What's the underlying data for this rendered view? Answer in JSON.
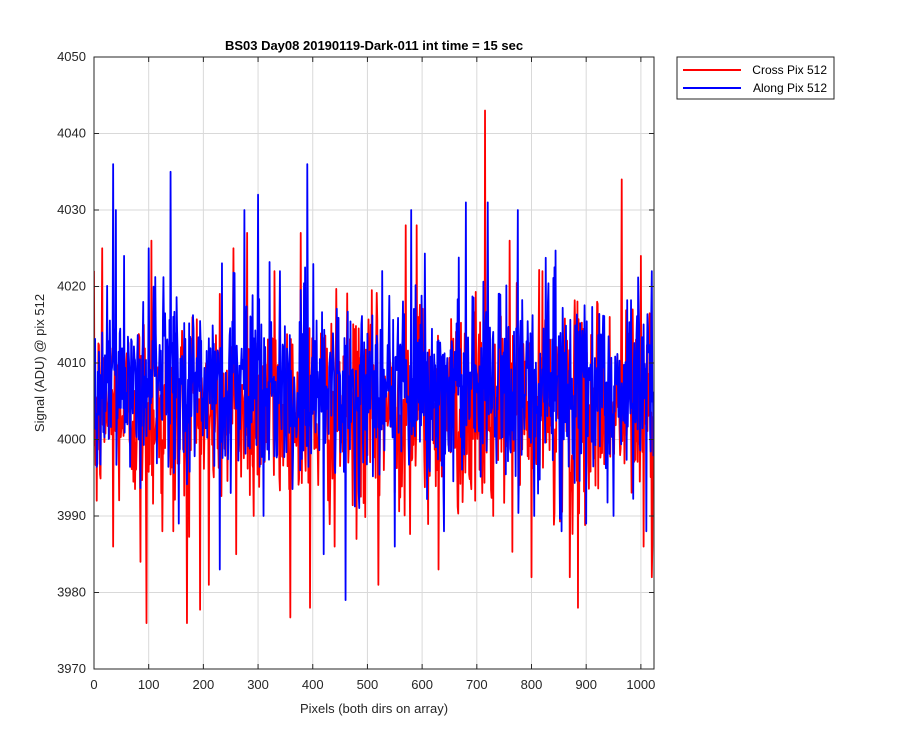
{
  "chart_data": {
    "type": "line",
    "title": "BS03 Day08 20190119-Dark-011 int time = 15 sec",
    "xlabel": "Pixels (both dirs on array)",
    "ylabel": "Signal (ADU) @ pix 512",
    "xlim": [
      0,
      1024
    ],
    "ylim": [
      3970,
      4050
    ],
    "xticks": [
      0,
      100,
      200,
      300,
      400,
      500,
      600,
      700,
      800,
      900,
      1000
    ],
    "yticks": [
      3970,
      3980,
      3990,
      4000,
      4010,
      4020,
      4030,
      4040,
      4050
    ],
    "grid": true,
    "legend_position": "outside-top-right",
    "series": [
      {
        "name": "Cross Pix 512",
        "color": "#ff0000",
        "n_points": 1024,
        "baseline": 4004,
        "noise_std": 6.5,
        "noise_range": [
          3976,
          4043
        ],
        "spikes": [
          {
            "x": 5,
            "y": 3992
          },
          {
            "x": 15,
            "y": 4025
          },
          {
            "x": 35,
            "y": 3986
          },
          {
            "x": 85,
            "y": 3984
          },
          {
            "x": 96,
            "y": 3976
          },
          {
            "x": 105,
            "y": 4026
          },
          {
            "x": 125,
            "y": 3988
          },
          {
            "x": 145,
            "y": 3988
          },
          {
            "x": 170,
            "y": 3976
          },
          {
            "x": 180,
            "y": 4016
          },
          {
            "x": 210,
            "y": 3981
          },
          {
            "x": 255,
            "y": 4025
          },
          {
            "x": 260,
            "y": 3985
          },
          {
            "x": 280,
            "y": 4027
          },
          {
            "x": 330,
            "y": 4022
          },
          {
            "x": 378,
            "y": 4027
          },
          {
            "x": 395,
            "y": 3978
          },
          {
            "x": 440,
            "y": 3986
          },
          {
            "x": 480,
            "y": 3987
          },
          {
            "x": 520,
            "y": 3981
          },
          {
            "x": 570,
            "y": 4028
          },
          {
            "x": 590,
            "y": 4028
          },
          {
            "x": 630,
            "y": 3983
          },
          {
            "x": 710,
            "y": 3993
          },
          {
            "x": 715,
            "y": 4043
          },
          {
            "x": 730,
            "y": 3990
          },
          {
            "x": 760,
            "y": 4026
          },
          {
            "x": 800,
            "y": 3982
          },
          {
            "x": 820,
            "y": 4022
          },
          {
            "x": 870,
            "y": 3982
          },
          {
            "x": 885,
            "y": 3978
          },
          {
            "x": 920,
            "y": 4018
          },
          {
            "x": 965,
            "y": 4034
          },
          {
            "x": 985,
            "y": 4017
          },
          {
            "x": 1000,
            "y": 4024
          },
          {
            "x": 1005,
            "y": 3986
          },
          {
            "x": 1020,
            "y": 3982
          }
        ]
      },
      {
        "name": "Along Pix 512",
        "color": "#0000ff",
        "n_points": 1024,
        "baseline": 4007,
        "noise_std": 6.0,
        "noise_range": [
          3979,
          4036
        ],
        "spikes": [
          {
            "x": 35,
            "y": 4036
          },
          {
            "x": 40,
            "y": 4030
          },
          {
            "x": 55,
            "y": 4024
          },
          {
            "x": 100,
            "y": 4025
          },
          {
            "x": 140,
            "y": 4035
          },
          {
            "x": 155,
            "y": 3989
          },
          {
            "x": 230,
            "y": 3983
          },
          {
            "x": 250,
            "y": 3993
          },
          {
            "x": 275,
            "y": 4030
          },
          {
            "x": 300,
            "y": 4032
          },
          {
            "x": 310,
            "y": 3990
          },
          {
            "x": 340,
            "y": 4022
          },
          {
            "x": 390,
            "y": 4036
          },
          {
            "x": 420,
            "y": 3985
          },
          {
            "x": 460,
            "y": 3979
          },
          {
            "x": 550,
            "y": 3986
          },
          {
            "x": 580,
            "y": 4030
          },
          {
            "x": 640,
            "y": 3988
          },
          {
            "x": 680,
            "y": 4031
          },
          {
            "x": 720,
            "y": 4031
          },
          {
            "x": 775,
            "y": 4030
          },
          {
            "x": 805,
            "y": 3990
          },
          {
            "x": 855,
            "y": 3988
          },
          {
            "x": 900,
            "y": 3989
          },
          {
            "x": 950,
            "y": 3990
          },
          {
            "x": 1010,
            "y": 3988
          },
          {
            "x": 1020,
            "y": 4022
          }
        ]
      }
    ]
  }
}
